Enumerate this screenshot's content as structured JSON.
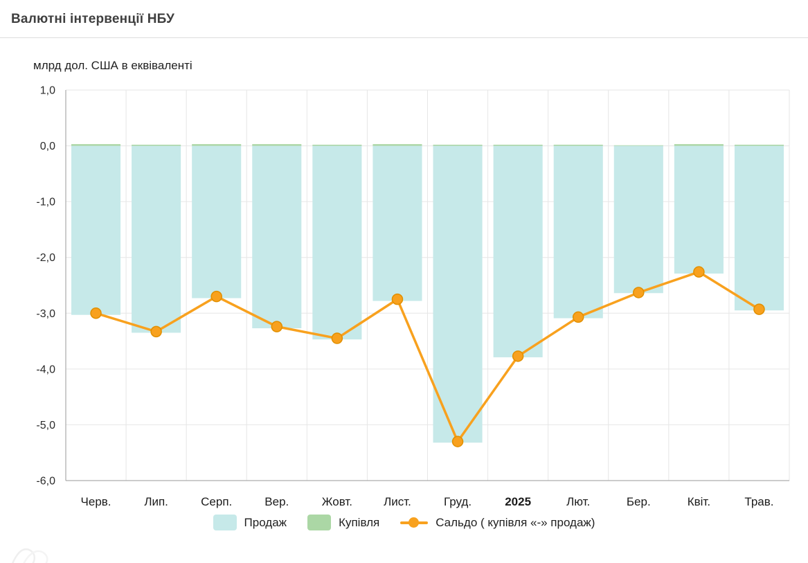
{
  "chart_data": {
    "type": "bar+line",
    "title": "Валютні інтервенції НБУ",
    "ylabel": "млрд дол. США в еквіваленті",
    "categories": [
      "Черв.",
      "Лип.",
      "Серп.",
      "Вер.",
      "Жовт.",
      "Лист.",
      "Груд.",
      "2025",
      "Лют.",
      "Бер.",
      "Квіт.",
      "Трав."
    ],
    "bold_category": "2025",
    "series": [
      {
        "name": "Продаж",
        "type": "bar",
        "color": "#c6e9e9",
        "values": [
          -3.03,
          -3.35,
          -2.73,
          -3.27,
          -3.47,
          -2.78,
          -5.32,
          -3.79,
          -3.09,
          -2.64,
          -2.29,
          -2.95
        ]
      },
      {
        "name": "Купівля",
        "type": "bar",
        "color": "#abd7a5",
        "values": [
          0.03,
          0.02,
          0.03,
          0.03,
          0.02,
          0.03,
          0.02,
          0.02,
          0.02,
          0.01,
          0.03,
          0.02
        ]
      },
      {
        "name": "Сальдо ( купівля «-» продаж)",
        "type": "line",
        "color": "#f8a11e",
        "marker_stroke": "#e18f00",
        "values": [
          -3.0,
          -3.33,
          -2.7,
          -3.24,
          -3.45,
          -2.75,
          -5.3,
          -3.77,
          -3.07,
          -2.63,
          -2.26,
          -2.93
        ]
      }
    ],
    "ylim": [
      -6,
      1
    ],
    "yticks": [
      1,
      0,
      -1,
      -2,
      -3,
      -4,
      -5,
      -6
    ],
    "ytick_labels": [
      "1,0",
      "0,0",
      "-1,0",
      "-2,0",
      "-3,0",
      "-4,0",
      "-5,0",
      "-6,0"
    ],
    "grid": {
      "horizontal": true,
      "vertical": true,
      "grid_color": "#e6e6e6",
      "axis_color": "#9a9a9a"
    },
    "legend_position": "bottom"
  }
}
